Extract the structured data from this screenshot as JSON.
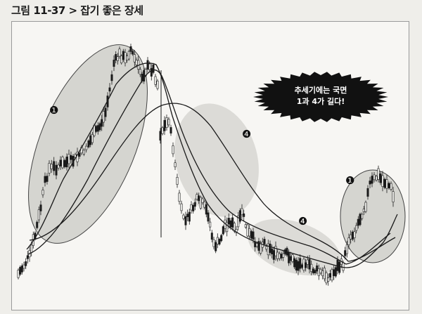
{
  "figure": {
    "title": "그림 11-37 > 잡기 좋은 장세"
  },
  "callout": {
    "line1": "추세기에는 국면",
    "line2": "1과 4가 길다!"
  },
  "phase_markers": [
    {
      "label": "❶"
    },
    {
      "label": "❹"
    },
    {
      "label": "❹"
    },
    {
      "label": "❶"
    }
  ],
  "colors": {
    "candles": "#1a1a1a",
    "highlight_ellipse": "#c9c9c4",
    "callout_burst": "#111111",
    "callout_text": "#ffffff"
  }
}
